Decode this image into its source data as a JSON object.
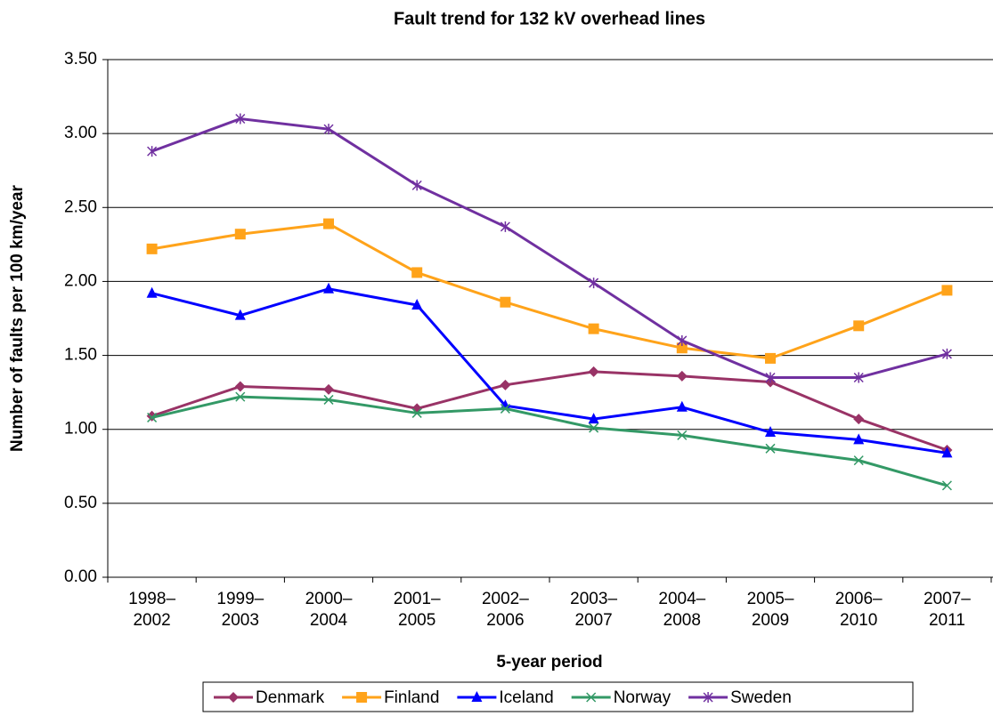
{
  "chart_data": {
    "type": "line",
    "title": "Fault trend for 132 kV overhead lines",
    "x_label": "5-year period",
    "y_label": "Number of faults per 100 km/year",
    "categories": [
      "1998–2002",
      "1999–2003",
      "2000–2004",
      "2001–2005",
      "2002–2006",
      "2003–2007",
      "2004–2008",
      "2005–2009",
      "2006–2010",
      "2007–2011"
    ],
    "series": [
      {
        "name": "Denmark",
        "color": "#993366",
        "marker": "diamond",
        "values": [
          1.09,
          1.29,
          1.27,
          1.14,
          1.3,
          1.39,
          1.36,
          1.32,
          1.07,
          0.86
        ]
      },
      {
        "name": "Finland",
        "color": "#ffa31a",
        "marker": "square",
        "values": [
          2.22,
          2.32,
          2.39,
          2.06,
          1.86,
          1.68,
          1.55,
          1.48,
          1.7,
          1.94
        ]
      },
      {
        "name": "Iceland",
        "color": "#0000ff",
        "marker": "triangle",
        "values": [
          1.92,
          1.77,
          1.95,
          1.84,
          1.16,
          1.07,
          1.15,
          0.98,
          0.93,
          0.84
        ]
      },
      {
        "name": "Norway",
        "color": "#339966",
        "marker": "x",
        "values": [
          1.08,
          1.22,
          1.2,
          1.11,
          1.14,
          1.01,
          0.96,
          0.87,
          0.79,
          0.62
        ]
      },
      {
        "name": "Sweden",
        "color": "#7030a0",
        "marker": "asterisk",
        "values": [
          2.88,
          3.1,
          3.03,
          2.65,
          2.37,
          1.99,
          1.6,
          1.35,
          1.35,
          1.51
        ]
      }
    ],
    "ylim": [
      0,
      3.5
    ],
    "yticks": [
      {
        "value": 0,
        "label": "0.00"
      },
      {
        "value": 0.5,
        "label": "0.50"
      },
      {
        "value": 1,
        "label": "1.00"
      },
      {
        "value": 1.5,
        "label": "1.50"
      },
      {
        "value": 2,
        "label": "2.00"
      },
      {
        "value": 2.5,
        "label": "2.50"
      },
      {
        "value": 3,
        "label": "3.00"
      },
      {
        "value": 3.5,
        "label": "3.50"
      }
    ],
    "grid": true,
    "legend": "bottom"
  }
}
